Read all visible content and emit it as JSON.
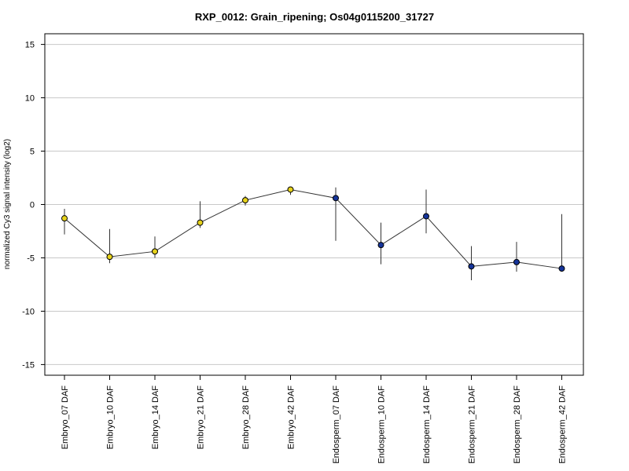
{
  "chart_data": {
    "type": "line",
    "title": "RXP_0012: Grain_ripening; Os04g0115200_31727",
    "ylabel": "normalized Cy3 signal intensity (log2)",
    "xlabel": "",
    "ylim": [
      -16,
      16
    ],
    "yticks": [
      15,
      10,
      5,
      0,
      -5,
      -10,
      -15
    ],
    "grid": true,
    "categories": [
      "Embryo_07 DAF",
      "Embryo_10 DAF",
      "Embryo_14 DAF",
      "Embryo_21 DAF",
      "Embryo_28 DAF",
      "Embryo_42 DAF",
      "Endosperm_07 DAF",
      "Endosperm_10 DAF",
      "Endosperm_14 DAF",
      "Endosperm_21 DAF",
      "Endosperm_28 DAF",
      "Endosperm_42 DAF"
    ],
    "values": [
      -1.3,
      -4.9,
      -4.4,
      -1.7,
      0.4,
      1.4,
      0.6,
      -3.8,
      -1.1,
      -5.8,
      -5.4,
      -6.0
    ],
    "error_low": [
      -2.8,
      -5.5,
      -5.0,
      -2.2,
      -0.1,
      0.9,
      -3.4,
      -5.6,
      -2.7,
      -7.1,
      -6.3,
      -6.2
    ],
    "error_high": [
      -0.4,
      -2.3,
      -3.0,
      0.3,
      0.8,
      1.6,
      1.6,
      -1.7,
      1.4,
      -3.9,
      -3.5,
      -0.9
    ],
    "point_colors": [
      "#e6d21c",
      "#e6d21c",
      "#e6d21c",
      "#e6d21c",
      "#e6d21c",
      "#e6d21c",
      "#15349a",
      "#15349a",
      "#15349a",
      "#15349a",
      "#15349a",
      "#15349a"
    ],
    "line_color": "#333333"
  }
}
